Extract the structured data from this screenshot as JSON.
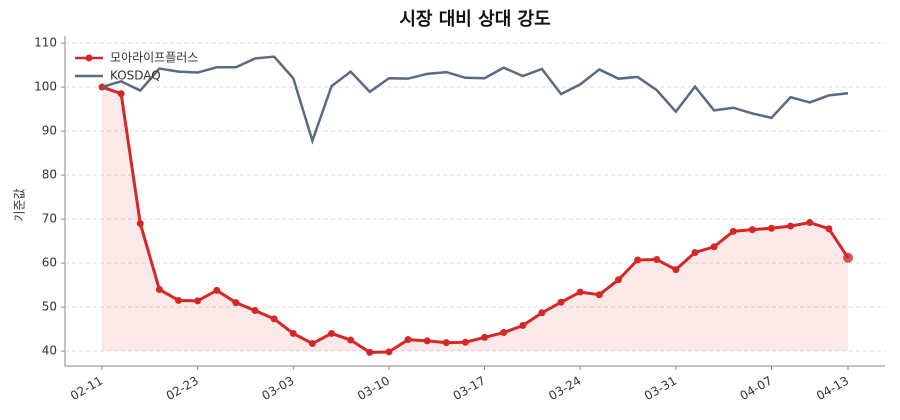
{
  "chart_data": {
    "type": "line",
    "title": "시장 대비 상대 강도",
    "y_label": "기준값",
    "categories": [
      "02-11",
      null,
      null,
      null,
      null,
      "02-23",
      null,
      null,
      null,
      null,
      "03-03",
      null,
      null,
      null,
      null,
      "03-10",
      null,
      null,
      null,
      null,
      "03-17",
      null,
      null,
      null,
      null,
      "03-24",
      null,
      null,
      null,
      null,
      "03-31",
      null,
      null,
      null,
      null,
      "04-07",
      null,
      null,
      null,
      "04-13"
    ],
    "series": [
      {
        "name": "모아라이프플러스",
        "color": "#d62728",
        "values": [
          100,
          98.5,
          69,
          54,
          51.5,
          51.4,
          53.8,
          51,
          49.2,
          47.3,
          44,
          41.7,
          44,
          42.5,
          39.7,
          39.8,
          42.6,
          42.3,
          41.9,
          42,
          43.1,
          44.2,
          45.8,
          48.7,
          51.1,
          53.4,
          52.8,
          56.2,
          60.7,
          60.8,
          58.5,
          62.4,
          63.7,
          67.2,
          67.6,
          67.9,
          68.4,
          69.2,
          67.8,
          61.2
        ]
      },
      {
        "name": "KOSDAQ",
        "color": "#5a6a80",
        "values": [
          100,
          101.3,
          99.2,
          104.2,
          103.5,
          103.3,
          104.5,
          104.5,
          106.5,
          106.9,
          102,
          87.8,
          100.2,
          103.5,
          98.9,
          102,
          101.9,
          103,
          103.4,
          102.1,
          102,
          104.4,
          102.5,
          104.1,
          98.4,
          100.6,
          104,
          101.9,
          102.3,
          99.3,
          94.4,
          100.1,
          94.7,
          95.3,
          94,
          93,
          97.7,
          96.5,
          98.1,
          98.6
        ]
      }
    ],
    "ylim": [
      36.6,
      111.6
    ],
    "yticks": [
      40,
      50,
      60,
      70,
      80,
      90,
      100,
      110
    ],
    "grid": true,
    "legend": "upper left"
  }
}
